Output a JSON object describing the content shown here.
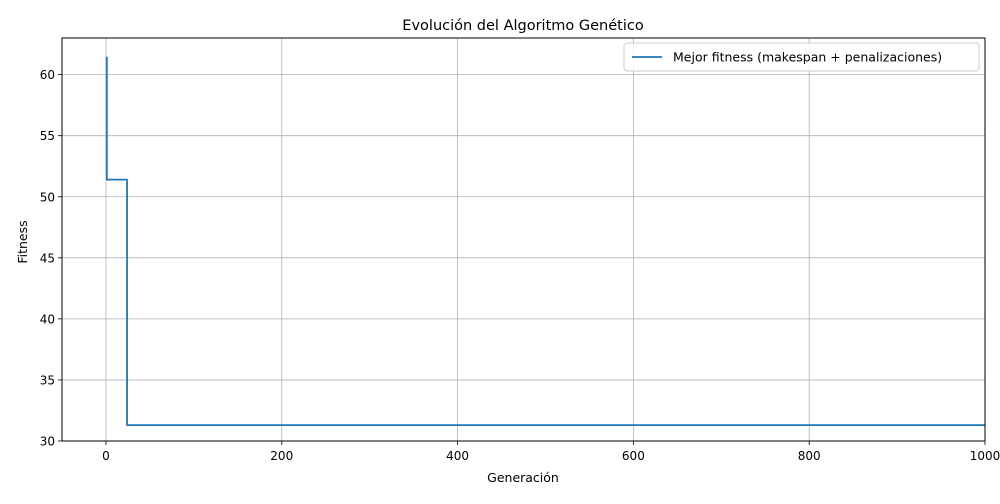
{
  "chart_data": {
    "type": "line",
    "title": "Evolución del Algoritmo Genético",
    "xlabel": "Generación",
    "ylabel": "Fitness",
    "xlim": [
      -50,
      1000
    ],
    "ylim": [
      30,
      63
    ],
    "xticks": [
      0,
      200,
      400,
      600,
      800,
      1000
    ],
    "yticks": [
      30,
      35,
      40,
      45,
      50,
      55,
      60
    ],
    "grid": true,
    "legend_position": "top-right",
    "series": [
      {
        "name": "Mejor fitness (makespan + penalizaciones)",
        "color": "#1f77b4",
        "x": [
          0,
          1,
          1,
          22,
          22,
          24,
          24,
          1000
        ],
        "y": [
          61.4,
          61.4,
          51.4,
          51.4,
          51.4,
          51.4,
          31.3,
          31.3
        ]
      }
    ]
  }
}
